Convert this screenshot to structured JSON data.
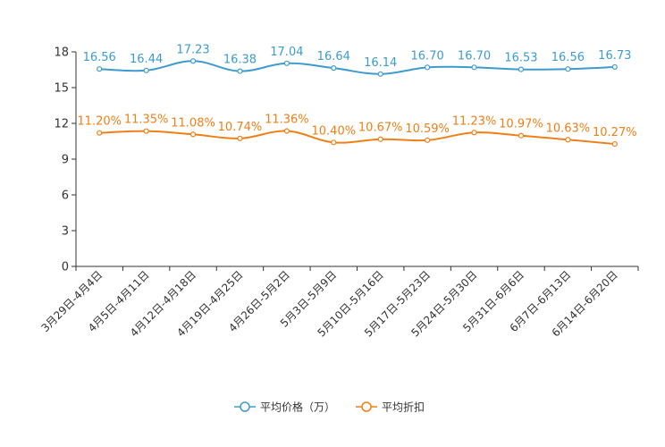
{
  "chart_data": {
    "type": "line",
    "categories": [
      "3月29日-4月4日",
      "4月5日-4月11日",
      "4月12日-4月18日",
      "4月19日-4月25日",
      "4月26日-5月2日",
      "5月3日-5月9日",
      "5月10日-5月16日",
      "5月17日-5月23日",
      "5月24日-5月30日",
      "5月31日-6月6日",
      "6月7日-6月13日",
      "6月14日-6月20日"
    ],
    "series": [
      {
        "name": "平均价格（万）",
        "color": "#3d9bcf",
        "values": [
          16.56,
          16.44,
          17.23,
          16.38,
          17.04,
          16.64,
          16.14,
          16.7,
          16.7,
          16.53,
          16.56,
          16.73
        ],
        "labels": [
          "16.56",
          "16.44",
          "17.23",
          "16.38",
          "17.04",
          "16.64",
          "16.14",
          "16.70",
          "16.70",
          "16.53",
          "16.56",
          "16.73"
        ]
      },
      {
        "name": "平均折扣",
        "color": "#f07f17",
        "values": [
          11.2,
          11.35,
          11.08,
          10.74,
          11.36,
          10.4,
          10.67,
          10.59,
          11.23,
          10.97,
          10.63,
          10.27
        ],
        "labels": [
          "11.20%",
          "11.35%",
          "11.08%",
          "10.74%",
          "11.36%",
          "10.40%",
          "10.67%",
          "10.59%",
          "11.23%",
          "10.97%",
          "10.63%",
          "10.27%"
        ]
      }
    ],
    "yticks": [
      "0",
      "3",
      "6",
      "9",
      "12",
      "15",
      "18"
    ],
    "ylim": [
      0,
      18
    ],
    "title": "",
    "xlabel": "",
    "ylabel": "",
    "legend_position": "bottom-center"
  }
}
